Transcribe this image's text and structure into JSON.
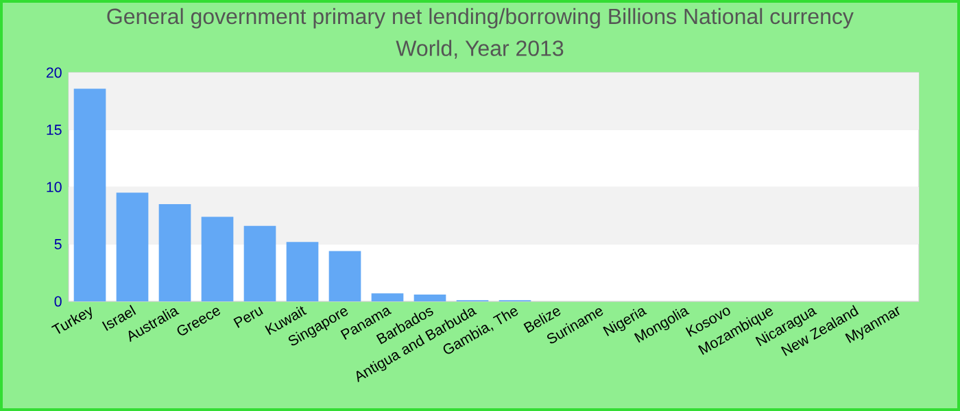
{
  "chart_data": {
    "type": "bar",
    "title": "General government primary net lending/borrowing Billions National currency",
    "subtitle": "World, Year 2013",
    "categories": [
      "Turkey",
      "Israel",
      "Australia",
      "Greece",
      "Peru",
      "Kuwait",
      "Singapore",
      "Panama",
      "Barbados",
      "Antigua and Barbuda",
      "Gambia, The",
      "Belize",
      "Suriname",
      "Nigeria",
      "Mongolia",
      "Kosovo",
      "Mozambique",
      "Nicaragua",
      "New Zealand",
      "Myanmar"
    ],
    "values": [
      18.6,
      9.5,
      8.5,
      7.4,
      6.6,
      5.2,
      4.4,
      0.7,
      0.6,
      0.1,
      0.1,
      0,
      0,
      0,
      0,
      0,
      0,
      0,
      0,
      0
    ],
    "color": "#63a8f5",
    "ylim": [
      0,
      20
    ],
    "yticks": [
      0,
      5,
      10,
      15,
      20
    ],
    "grid": "y"
  }
}
